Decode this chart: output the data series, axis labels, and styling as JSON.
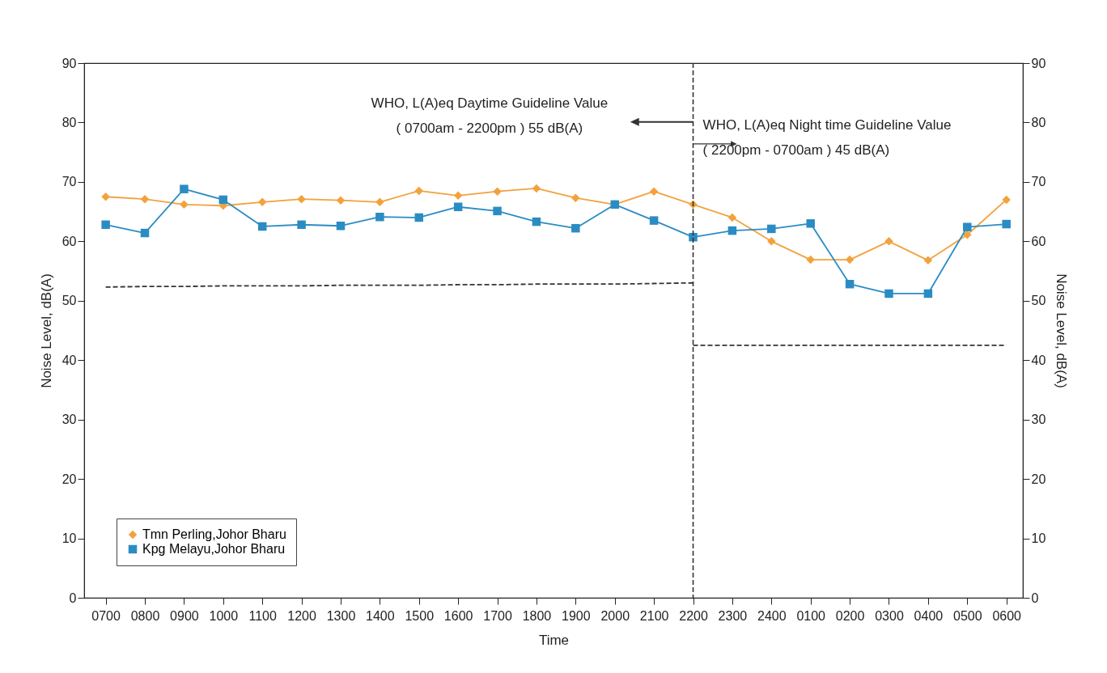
{
  "chart_data": {
    "type": "line",
    "xlabel": "Time",
    "ylabel": "Noise Level, dB(A)",
    "y2label": "Noise Level, dB(A)",
    "categories": [
      "0700",
      "0800",
      "0900",
      "1000",
      "1100",
      "1200",
      "1300",
      "1400",
      "1500",
      "1600",
      "1700",
      "1800",
      "1900",
      "2000",
      "2100",
      "2200",
      "2300",
      "2400",
      "0100",
      "0200",
      "0300",
      "0400",
      "0500",
      "0600"
    ],
    "series": [
      {
        "name": "Tmn Perling,Johor Bharu",
        "color": "#f2a23c",
        "marker": "diamond",
        "values": [
          67.5,
          67.1,
          66.2,
          66.0,
          66.6,
          67.1,
          66.9,
          66.6,
          68.5,
          67.7,
          68.4,
          68.9,
          67.3,
          66.2,
          68.4,
          66.2,
          64.0,
          60.0,
          56.9,
          56.9,
          60.0,
          56.8,
          61.1,
          67.0
        ]
      },
      {
        "name": "Kpg Melayu,Johor Bharu",
        "color": "#2b8cc4",
        "marker": "square",
        "values": [
          62.8,
          61.4,
          68.8,
          67.0,
          62.5,
          62.8,
          62.6,
          64.1,
          64.0,
          65.8,
          65.1,
          63.3,
          62.2,
          66.2,
          63.5,
          60.7,
          61.8,
          62.1,
          63.0,
          52.8,
          51.2,
          51.2,
          62.4,
          62.9
        ]
      },
      {
        "color": "#333333",
        "marker": "none",
        "line_style": "dashed",
        "values": [
          52.3,
          52.4,
          52.4,
          52.5,
          52.5,
          52.5,
          52.6,
          52.6,
          52.6,
          52.7,
          52.7,
          52.8,
          52.8,
          52.8,
          52.9,
          53.0,
          null,
          null,
          null,
          null,
          null,
          null,
          null,
          null
        ]
      },
      {
        "color": "#333333",
        "marker": "none",
        "line_style": "dashed",
        "axis": "y2",
        "values": [
          null,
          null,
          null,
          null,
          null,
          null,
          null,
          null,
          null,
          null,
          null,
          null,
          null,
          null,
          null,
          42.5,
          42.5,
          42.5,
          42.5,
          42.5,
          42.5,
          42.5,
          42.5,
          42.5
        ]
      }
    ],
    "ylim": [
      0,
      90
    ],
    "yticks": [
      0,
      10,
      20,
      30,
      40,
      50,
      60,
      70,
      80,
      90
    ],
    "y2lim": [
      0,
      90
    ],
    "y2ticks": [
      0,
      10,
      20,
      30,
      40,
      50,
      60,
      70,
      80,
      90
    ],
    "ref_lines": [
      {
        "axis": "x",
        "value": "2200",
        "line_style": "dashed",
        "color": "#333333"
      }
    ],
    "annotations": [
      "WHO, L(A)eq Daytime Guideline Value\n( 0700am - 2200pm ) 55 dB(A)",
      "WHO, L(A)eq Night time Guideline Value\n( 2200pm - 0700am ) 45 dB(A)"
    ],
    "grid": false,
    "legend": "bottom left"
  }
}
